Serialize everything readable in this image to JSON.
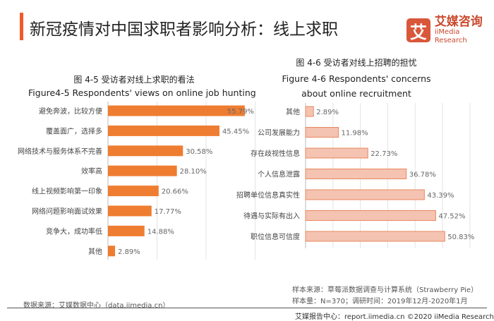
{
  "header": {
    "title": "新冠疫情对中国求职者影响分析：线上求职"
  },
  "logo": {
    "mark": "艾",
    "cn": "艾媒咨询",
    "en": "iiMedia Research"
  },
  "chart_data": [
    {
      "type": "bar",
      "orientation": "horizontal",
      "title": "图 4-5 受访者对线上求职的看法",
      "subtitle": "Figure4-5 Respondents' views on online job hunting",
      "categories": [
        "避免奔波，比较方便",
        "覆盖面广，选择多",
        "网络技术与服务体系不完善",
        "效率高",
        "线上视频影响第一印象",
        "网络问题影响面试效果",
        "竞争大，成功率低",
        "其他"
      ],
      "values": [
        55.79,
        45.45,
        30.58,
        28.1,
        20.66,
        17.77,
        14.88,
        2.89
      ],
      "labels": [
        "55.79%",
        "45.45%",
        "30.58%",
        "28.10%",
        "20.66%",
        "17.77%",
        "14.88%",
        "2.89%"
      ],
      "xlim": [
        0,
        60
      ],
      "grid": true,
      "color": "#ee7d31"
    },
    {
      "type": "bar",
      "orientation": "horizontal",
      "title": "图 4-6 受访者对线上招聘的担忧",
      "subtitle": "Figure 4-6  Respondents' concerns about online recruitment",
      "categories": [
        "其他",
        "公司发展能力",
        "存在歧视性信息",
        "个人信息泄露",
        "招聘单位信息真实性",
        "待遇与实际有出入",
        "职位信息可信度"
      ],
      "values": [
        2.89,
        11.98,
        22.73,
        36.78,
        43.39,
        47.52,
        50.83
      ],
      "labels": [
        "2.89%",
        "11.98%",
        "22.73%",
        "36.78%",
        "43.39%",
        "47.52%",
        "50.83%"
      ],
      "xlim": [
        0,
        60
      ],
      "grid": true,
      "color": "#f4c3b1",
      "edge": "#e8875f"
    }
  ],
  "footer": {
    "source": "数据来源：艾媒数据中心（data.iimedia.cn）",
    "sample_source": "样本来源：草莓派数据调查与计算系统（Strawberry Pie）",
    "sample_size": "样本量：N=370；调研时间：2019年12月-2020年1月",
    "copyright": "艾媒报告中心：report.iimedia.cn  ©2020  iiMedia Research Inc"
  }
}
